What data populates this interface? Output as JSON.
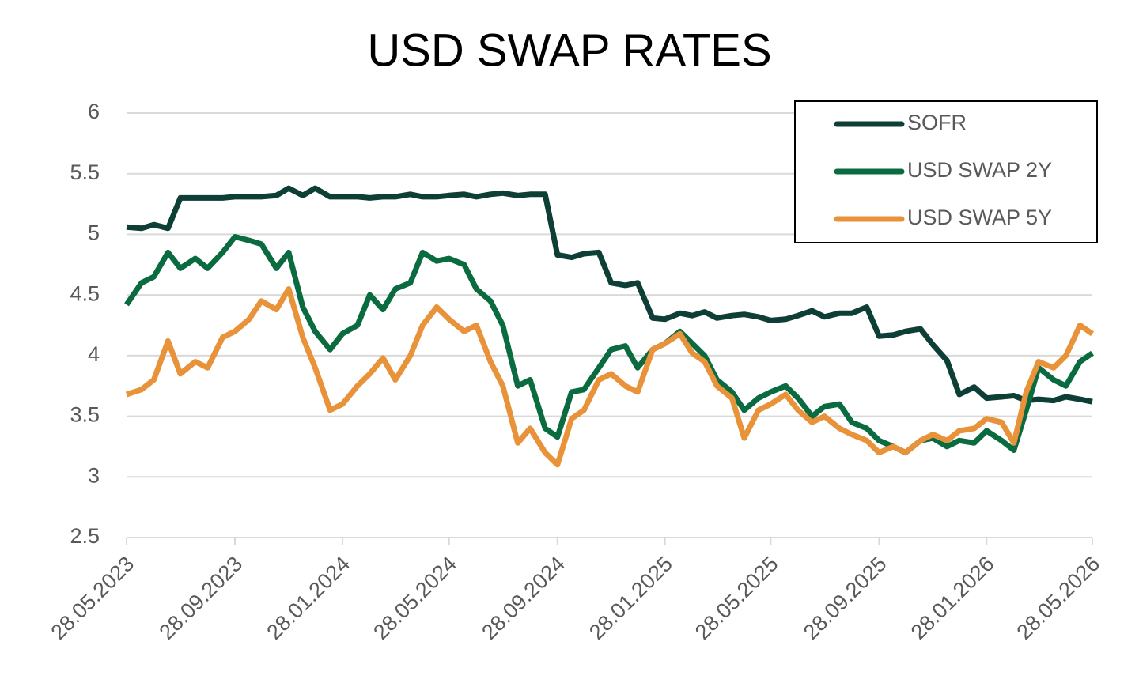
{
  "chart_data": {
    "type": "line",
    "title": "USD SWAP RATES",
    "x": [
      "28.05.2023",
      "14.06.2023",
      "28.06.2023",
      "14.07.2023",
      "28.07.2023",
      "14.08.2023",
      "28.08.2023",
      "14.09.2023",
      "28.09.2023",
      "14.10.2023",
      "28.10.2023",
      "14.11.2023",
      "28.11.2023",
      "14.12.2023",
      "28.12.2023",
      "14.01.2024",
      "28.01.2024",
      "14.02.2024",
      "28.02.2024",
      "14.03.2024",
      "28.03.2024",
      "14.04.2024",
      "28.04.2024",
      "14.05.2024",
      "28.05.2024",
      "14.06.2024",
      "28.06.2024",
      "14.07.2024",
      "28.07.2024",
      "14.08.2024",
      "28.08.2024",
      "14.09.2024",
      "28.09.2024",
      "14.10.2024",
      "28.10.2024",
      "14.11.2024",
      "28.11.2024",
      "14.12.2024",
      "28.12.2024",
      "14.01.2025",
      "28.01.2025",
      "14.02.2025",
      "28.02.2025",
      "14.03.2025",
      "28.03.2025",
      "14.04.2025",
      "28.04.2025",
      "14.05.2025",
      "28.05.2025",
      "14.06.2025",
      "28.06.2025",
      "14.07.2025",
      "28.07.2025",
      "14.08.2025",
      "28.08.2025",
      "14.09.2025",
      "28.09.2025",
      "14.10.2025",
      "28.10.2025",
      "14.11.2025",
      "28.11.2025",
      "14.12.2025",
      "28.12.2025",
      "14.01.2026",
      "28.01.2026",
      "14.02.2026",
      "28.02.2026",
      "14.03.2026",
      "28.03.2026",
      "14.04.2026",
      "28.04.2026",
      "14.05.2026",
      "28.05.2026"
    ],
    "series": [
      {
        "name": "SOFR",
        "color": "#0d3f36",
        "values": [
          5.06,
          5.05,
          5.08,
          5.05,
          5.3,
          5.3,
          5.3,
          5.3,
          5.31,
          5.31,
          5.31,
          5.32,
          5.38,
          5.32,
          5.38,
          5.31,
          5.31,
          5.31,
          5.3,
          5.31,
          5.31,
          5.33,
          5.31,
          5.31,
          5.32,
          5.33,
          5.31,
          5.33,
          5.34,
          5.32,
          5.33,
          5.33,
          4.83,
          4.81,
          4.84,
          4.85,
          4.6,
          4.58,
          4.6,
          4.31,
          4.3,
          4.35,
          4.33,
          4.36,
          4.31,
          4.33,
          4.34,
          4.32,
          4.29,
          4.3,
          4.33,
          4.37,
          4.32,
          4.35,
          4.35,
          4.4,
          4.16,
          4.17,
          4.2,
          4.22,
          4.09,
          3.96,
          3.68,
          3.74,
          3.65,
          3.66,
          3.67,
          3.63,
          3.64,
          3.63,
          3.66,
          3.64,
          3.62
        ]
      },
      {
        "name": "USD SWAP 2Y",
        "color": "#0b6b40",
        "values": [
          4.42,
          4.6,
          4.65,
          4.85,
          4.72,
          4.8,
          4.72,
          4.85,
          4.98,
          4.95,
          4.92,
          4.72,
          4.85,
          4.4,
          4.2,
          4.05,
          4.18,
          4.25,
          4.5,
          4.38,
          4.55,
          4.6,
          4.85,
          4.78,
          4.8,
          4.75,
          4.55,
          4.45,
          4.25,
          3.75,
          3.8,
          3.4,
          3.33,
          3.7,
          3.72,
          3.9,
          4.05,
          4.08,
          3.9,
          4.05,
          4.1,
          4.2,
          4.1,
          4.0,
          3.8,
          3.7,
          3.55,
          3.65,
          3.7,
          3.75,
          3.65,
          3.5,
          3.58,
          3.6,
          3.45,
          3.4,
          3.3,
          3.25,
          3.2,
          3.3,
          3.32,
          3.25,
          3.3,
          3.28,
          3.38,
          3.3,
          3.22,
          3.55,
          3.9,
          3.8,
          3.75,
          3.95,
          4.02
        ]
      },
      {
        "name": "USD SWAP 5Y",
        "color": "#e8923a",
        "values": [
          3.68,
          3.72,
          3.8,
          4.12,
          3.85,
          3.95,
          3.9,
          4.15,
          4.2,
          4.3,
          4.45,
          4.38,
          4.55,
          4.15,
          3.9,
          3.55,
          3.6,
          3.75,
          3.85,
          3.98,
          3.8,
          4.0,
          4.25,
          4.4,
          4.3,
          4.2,
          4.25,
          3.95,
          3.75,
          3.28,
          3.4,
          3.2,
          3.1,
          3.48,
          3.55,
          3.8,
          3.85,
          3.75,
          3.7,
          4.05,
          4.1,
          4.18,
          4.02,
          3.95,
          3.75,
          3.65,
          3.32,
          3.55,
          3.6,
          3.68,
          3.55,
          3.45,
          3.5,
          3.4,
          3.35,
          3.3,
          3.2,
          3.25,
          3.2,
          3.3,
          3.35,
          3.3,
          3.38,
          3.4,
          3.48,
          3.45,
          3.28,
          3.7,
          3.95,
          3.9,
          4.0,
          4.25,
          4.18
        ]
      }
    ],
    "xlim": [
      "28.05.2023",
      "28.05.2026"
    ],
    "xticks": [
      "28.05.2023",
      "28.09.2023",
      "28.01.2024",
      "28.05.2024",
      "28.09.2024",
      "28.01.2025",
      "28.05.2025",
      "28.09.2025",
      "28.01.2026",
      "28.05.2026"
    ],
    "ylim": [
      2.5,
      6
    ],
    "yticks": [
      2.5,
      3,
      3.5,
      4,
      4.5,
      5,
      5.5,
      6
    ],
    "grid": true,
    "legend": "upper right"
  }
}
